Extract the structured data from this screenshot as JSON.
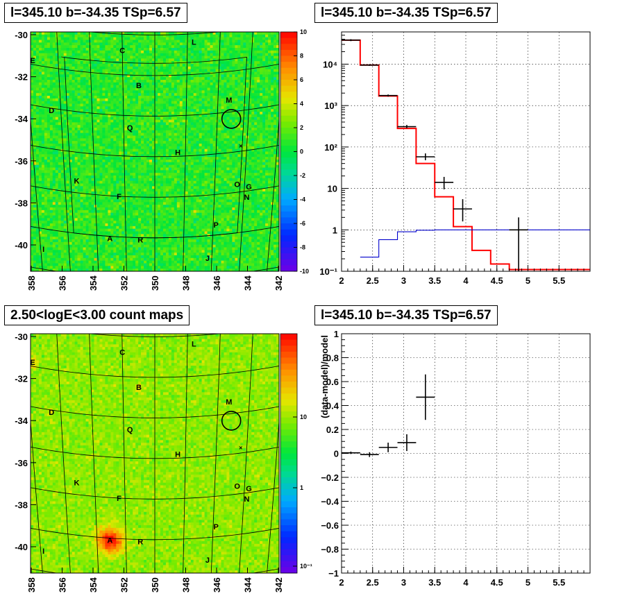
{
  "panels": {
    "tl_title": "l=345.10 b=-34.35 TSp=6.57",
    "tr_title": "l=345.10 b=-34.35 TSp=6.57",
    "bl_title": "2.50<logE<3.00 count maps",
    "br_title": "l=345.10 b=-34.35 TSp=6.57",
    "br_ylabel": "(data-model)/model"
  },
  "colors": {
    "red_model": "#ff0000",
    "blue_model": "#0000cc",
    "data": "#000000"
  },
  "chart_data": [
    {
      "id": "tl",
      "type": "heatmap",
      "title": "l=345.10 b=-34.35 TSp=6.57",
      "x_ticks": [
        "358",
        "356",
        "354",
        "352",
        "350",
        "348",
        "346",
        "344",
        "342"
      ],
      "y_ticks": [
        "-30",
        "-32",
        "-34",
        "-36",
        "-38",
        "-40"
      ],
      "colorbar_ticks": [
        "10",
        "8",
        "6",
        "4",
        "2",
        "0",
        "-2",
        "-4",
        "-6",
        "-8",
        "-10"
      ],
      "colorbar_range": [
        -10,
        10
      ],
      "source_labels": [
        {
          "t": "C",
          "l": 352.0,
          "b": -30.8
        },
        {
          "t": "L",
          "l": 347.6,
          "b": -30.4
        },
        {
          "t": "E",
          "l": 357.6,
          "b": -31.8
        },
        {
          "t": "B",
          "l": 351.0,
          "b": -32.5
        },
        {
          "t": "M",
          "l": 345.3,
          "b": -33.4
        },
        {
          "t": "D",
          "l": 356.6,
          "b": -34.1
        },
        {
          "t": "Q",
          "l": 351.6,
          "b": -34.6
        },
        {
          "t": "H",
          "l": 348.5,
          "b": -35.8
        },
        {
          "t": "K",
          "l": 355.2,
          "b": -37.4
        },
        {
          "t": "F",
          "l": 352.4,
          "b": -38.0
        },
        {
          "t": "O",
          "l": 344.5,
          "b": -37.6
        },
        {
          "t": "G",
          "l": 343.7,
          "b": -37.8
        },
        {
          "t": "N",
          "l": 343.8,
          "b": -38.3
        },
        {
          "t": "P",
          "l": 345.8,
          "b": -39.5
        },
        {
          "t": "A",
          "l": 353.1,
          "b": -40.1
        },
        {
          "t": "R",
          "l": 351.0,
          "b": -40.1
        },
        {
          "t": "I",
          "l": 357.8,
          "b": -41.0
        },
        {
          "t": "J",
          "l": 346.3,
          "b": -41.1
        }
      ],
      "circle": {
        "l": 345.1,
        "b": -34.35
      }
    },
    {
      "id": "tr",
      "type": "line",
      "title": "l=345.10 b=-34.35 TSp=6.57",
      "xlim": [
        2,
        6
      ],
      "ylim": [
        0.1,
        60000
      ],
      "yscale": "log",
      "x_ticks": [
        "2",
        "2.5",
        "3",
        "3.5",
        "4",
        "4.5",
        "5",
        "5.5"
      ],
      "y_ticks": [
        "10⁻¹",
        "1",
        "10",
        "10²",
        "10³",
        "10⁴"
      ],
      "series": [
        {
          "style": "step",
          "color": "red",
          "edges": [
            2,
            2.3,
            2.6,
            2.9,
            3.2,
            3.5,
            3.8,
            4.1,
            4.4,
            4.7,
            5.0,
            6.0
          ],
          "values": [
            38000,
            9500,
            1700,
            280,
            40,
            6.3,
            1.2,
            0.32,
            0.15,
            0.11,
            0.11
          ]
        },
        {
          "style": "step",
          "color": "blue",
          "edges": [
            2.3,
            2.6,
            2.9,
            3.2,
            3.5,
            3.8,
            4.1,
            6.0
          ],
          "values": [
            0.22,
            0.58,
            0.9,
            0.98,
            1.0,
            1.0,
            1.0
          ]
        },
        {
          "style": "points",
          "color": "black",
          "x": [
            2.15,
            2.45,
            2.75,
            3.05,
            3.35,
            3.65,
            3.95,
            4.85
          ],
          "y": [
            38000,
            9500,
            1750,
            310,
            58,
            14,
            3.2,
            1.0
          ],
          "xerr": [
            0.15,
            0.15,
            0.15,
            0.15,
            0.15,
            0.15,
            0.15,
            0.15
          ],
          "ylo": [
            36000,
            9100,
            1650,
            285,
            48,
            9.5,
            1.6,
            0.1
          ],
          "yhi": [
            40000,
            9900,
            1850,
            340,
            70,
            19,
            5.5,
            2.0
          ]
        }
      ]
    },
    {
      "id": "bl",
      "type": "heatmap",
      "title": "2.50<logE<3.00 count maps",
      "x_ticks": [
        "358",
        "356",
        "354",
        "352",
        "350",
        "348",
        "346",
        "344",
        "342"
      ],
      "y_ticks": [
        "-30",
        "-32",
        "-34",
        "-36",
        "-38",
        "-40"
      ],
      "colorbar_scale": "log",
      "colorbar_ticks": [
        "10",
        "1",
        "10⁻¹"
      ],
      "source_labels": [
        {
          "t": "C",
          "l": 352.0,
          "b": -30.8
        },
        {
          "t": "L",
          "l": 347.6,
          "b": -30.4
        },
        {
          "t": "E",
          "l": 357.6,
          "b": -31.8
        },
        {
          "t": "B",
          "l": 351.0,
          "b": -32.5
        },
        {
          "t": "M",
          "l": 345.3,
          "b": -33.4
        },
        {
          "t": "D",
          "l": 356.6,
          "b": -34.1
        },
        {
          "t": "Q",
          "l": 351.6,
          "b": -34.6
        },
        {
          "t": "H",
          "l": 348.5,
          "b": -35.8
        },
        {
          "t": "K",
          "l": 355.2,
          "b": -37.4
        },
        {
          "t": "F",
          "l": 352.4,
          "b": -38.0
        },
        {
          "t": "O",
          "l": 344.5,
          "b": -37.6
        },
        {
          "t": "G",
          "l": 343.7,
          "b": -37.8
        },
        {
          "t": "N",
          "l": 343.8,
          "b": -38.3
        },
        {
          "t": "P",
          "l": 345.8,
          "b": -39.5
        },
        {
          "t": "A",
          "l": 353.1,
          "b": -40.1
        },
        {
          "t": "R",
          "l": 351.0,
          "b": -40.1
        },
        {
          "t": "I",
          "l": 357.8,
          "b": -41.0
        },
        {
          "t": "J",
          "l": 346.3,
          "b": -41.1
        }
      ],
      "circle": {
        "l": 345.1,
        "b": -34.35
      }
    },
    {
      "id": "br",
      "type": "scatter",
      "title": "l=345.10 b=-34.35 TSp=6.57",
      "ylabel": "(data-model)/model",
      "xlim": [
        2,
        6
      ],
      "ylim": [
        -1,
        1
      ],
      "x_ticks": [
        "2",
        "2.5",
        "3",
        "3.5",
        "4",
        "4.5",
        "5",
        "5.5"
      ],
      "y_ticks": [
        "1",
        "0.8",
        "0.6",
        "0.4",
        "0.2",
        "0",
        "−0.2",
        "−0.4",
        "−0.6",
        "−0.8",
        "−1"
      ],
      "points": {
        "x": [
          2.15,
          2.45,
          2.75,
          3.05,
          3.35
        ],
        "y": [
          0.005,
          -0.01,
          0.05,
          0.09,
          0.47
        ],
        "xerr": [
          0.15,
          0.15,
          0.15,
          0.15,
          0.15
        ],
        "yerr": [
          0.01,
          0.02,
          0.04,
          0.07,
          0.19
        ]
      }
    }
  ]
}
